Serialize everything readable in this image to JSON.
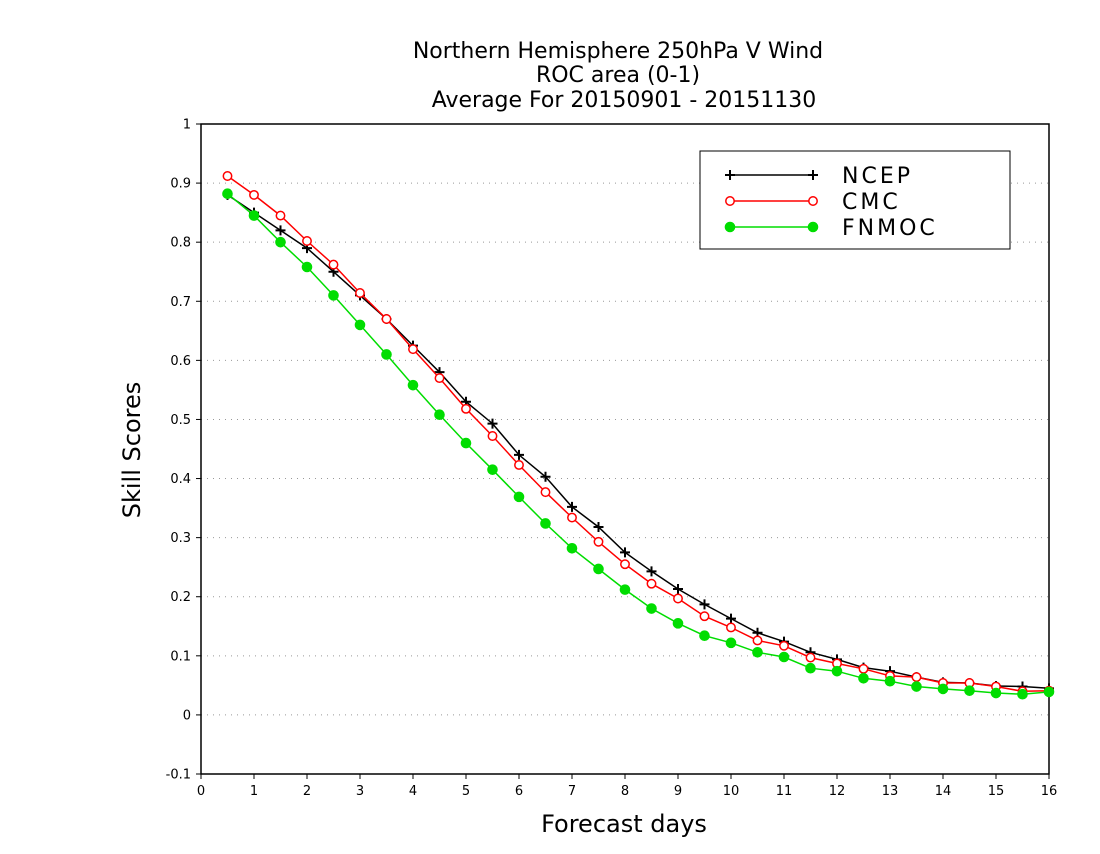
{
  "chart_data": {
    "type": "line",
    "title_lines": [
      "Northern Hemisphere 250hPa V Wind",
      "ROC area (0-1)",
      "Average For 20150901 - 20151130"
    ],
    "xlabel": "Forecast days",
    "ylabel": "Skill Scores",
    "xlim": [
      0,
      16
    ],
    "ylim": [
      -0.1,
      1
    ],
    "xticks": [
      0,
      1,
      2,
      3,
      4,
      5,
      6,
      7,
      8,
      9,
      10,
      11,
      12,
      13,
      14,
      15,
      16
    ],
    "yticks": [
      -0.1,
      0,
      0.1,
      0.2,
      0.3,
      0.4,
      0.5,
      0.6,
      0.7,
      0.8,
      0.9,
      1
    ],
    "ytick_labels": [
      "-0.1",
      "0",
      "0.1",
      "0.2",
      "0.3",
      "0.4",
      "0.5",
      "0.6",
      "0.7",
      "0.8",
      "0.9",
      "1"
    ],
    "grid": "horizontal-dotted",
    "legend_position": "top-right",
    "x": [
      0.5,
      1,
      1.5,
      2,
      2.5,
      3,
      3.5,
      4,
      4.5,
      5,
      5.5,
      6,
      6.5,
      7,
      7.5,
      8,
      8.5,
      9,
      9.5,
      10,
      10.5,
      11,
      11.5,
      12,
      12.5,
      13,
      13.5,
      14,
      14.5,
      15,
      15.5,
      16
    ],
    "series": [
      {
        "name": "NCEP",
        "color": "#000000",
        "marker": "plus",
        "values": [
          0.88,
          0.85,
          0.82,
          0.79,
          0.75,
          0.71,
          0.67,
          0.625,
          0.58,
          0.53,
          0.493,
          0.44,
          0.403,
          0.352,
          0.318,
          0.275,
          0.243,
          0.213,
          0.187,
          0.163,
          0.139,
          0.124,
          0.106,
          0.094,
          0.08,
          0.074,
          0.064,
          0.055,
          0.054,
          0.049,
          0.048,
          0.045
        ]
      },
      {
        "name": "CMC",
        "color": "#ff0000",
        "marker": "open-circle",
        "values": [
          0.912,
          0.88,
          0.845,
          0.802,
          0.762,
          0.714,
          0.67,
          0.619,
          0.57,
          0.518,
          0.472,
          0.423,
          0.377,
          0.334,
          0.293,
          0.255,
          0.222,
          0.197,
          0.167,
          0.148,
          0.126,
          0.117,
          0.097,
          0.087,
          0.078,
          0.066,
          0.064,
          0.054,
          0.054,
          0.048,
          0.04,
          0.041
        ]
      },
      {
        "name": "FNMOC",
        "color": "#00dd00",
        "marker": "filled-circle",
        "values": [
          0.882,
          0.845,
          0.8,
          0.758,
          0.71,
          0.66,
          0.61,
          0.558,
          0.508,
          0.46,
          0.415,
          0.369,
          0.324,
          0.282,
          0.247,
          0.212,
          0.18,
          0.155,
          0.134,
          0.122,
          0.106,
          0.098,
          0.079,
          0.074,
          0.062,
          0.057,
          0.048,
          0.044,
          0.041,
          0.037,
          0.035,
          0.039
        ]
      }
    ]
  }
}
